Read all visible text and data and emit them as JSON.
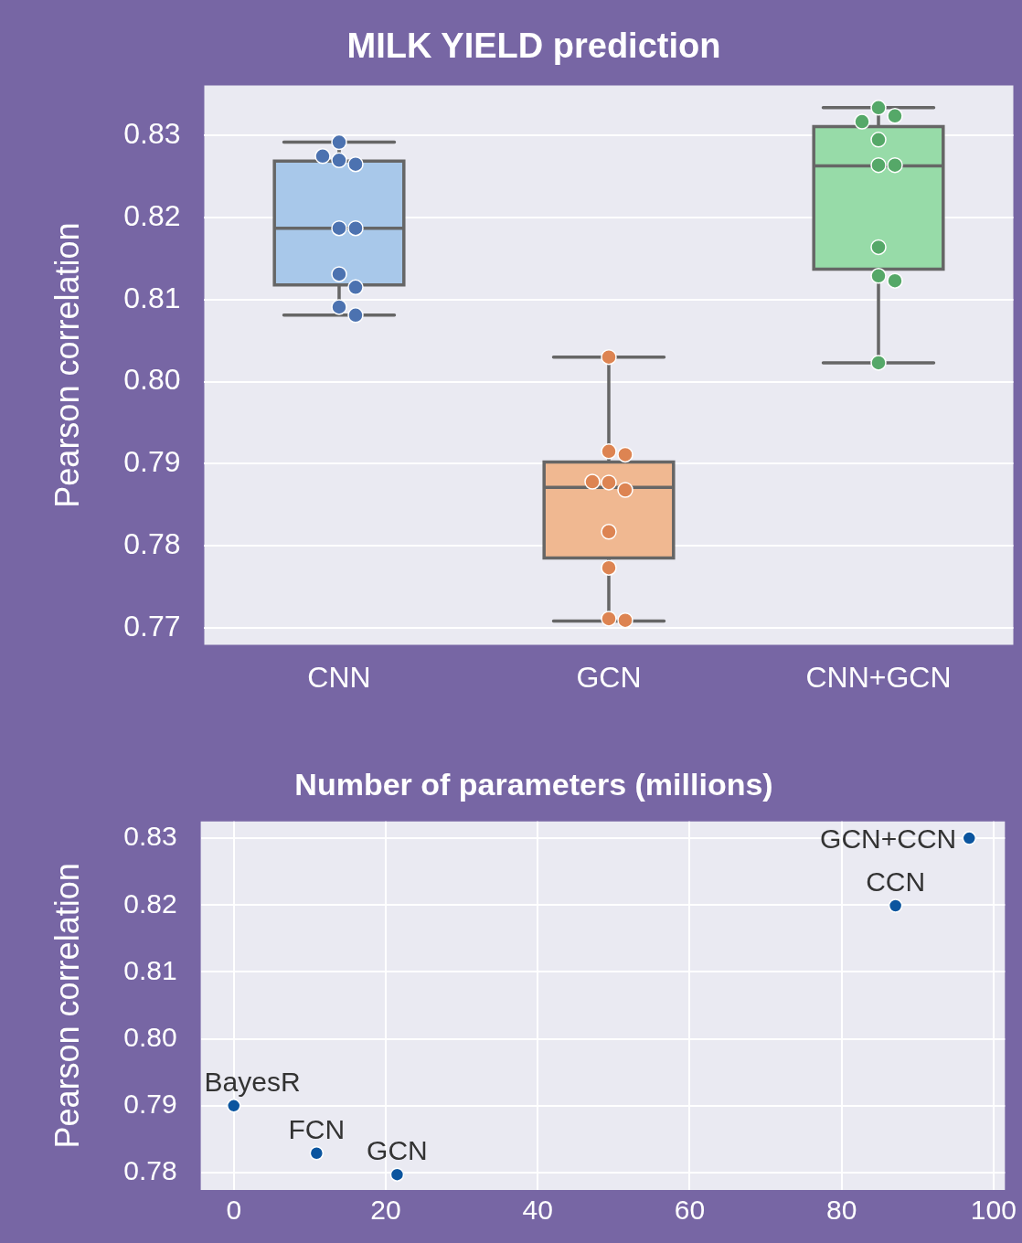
{
  "chart_data": [
    {
      "type": "box",
      "title": "MILK YIELD prediction",
      "ylabel": "Pearson correlation",
      "categories": [
        "CNN",
        "GCN",
        "CNN+GCN"
      ],
      "ylim": [
        0.7679,
        0.8361
      ],
      "yticks": [
        0.77,
        0.78,
        0.79,
        {
          "value": 0.8,
          "label": "0.80"
        },
        0.81,
        0.82,
        0.83
      ],
      "grid": "y",
      "legend": false,
      "series": [
        {
          "type": "box",
          "colors": [
            "#a8c8ea",
            "#f0b891",
            "#97dba8"
          ],
          "boxes": [
            {
              "low": 0.8081,
              "q1": 0.8118,
              "median": 0.8187,
              "q3": 0.8269,
              "high": 0.8292
            },
            {
              "low": 0.7708,
              "q1": 0.7785,
              "median": 0.7871,
              "q3": 0.7902,
              "high": 0.803
            },
            {
              "low": 0.8023,
              "q1": 0.8137,
              "median": 0.8263,
              "q3": 0.8311,
              "high": 0.8334
            }
          ]
        },
        {
          "type": "scatter",
          "x": [
            "CNN",
            "CNN",
            "CNN",
            "CNN",
            "CNN",
            "CNN",
            "CNN",
            "CNN",
            "CNN",
            "CNN",
            "GCN",
            "GCN",
            "GCN",
            "GCN",
            "GCN",
            "GCN",
            "GCN",
            "GCN",
            "GCN",
            "GCN",
            "CNN+GCN",
            "CNN+GCN",
            "CNN+GCN",
            "CNN+GCN",
            "CNN+GCN",
            "CNN+GCN",
            "CNN+GCN",
            "CNN+GCN",
            "CNN+GCN",
            "CNN+GCN"
          ],
          "values": [
            0.8292,
            0.827,
            0.8265,
            0.8275,
            0.8187,
            0.8187,
            0.8131,
            0.8115,
            0.8091,
            0.8081,
            0.803,
            0.7915,
            0.7911,
            0.7877,
            0.7868,
            0.7878,
            0.7817,
            0.7773,
            0.7711,
            0.7709,
            0.8334,
            0.8324,
            0.8317,
            0.8295,
            0.8264,
            0.8264,
            0.8164,
            0.8129,
            0.8123,
            0.8023
          ],
          "colors": [
            "#4c72b0",
            "#4c72b0",
            "#4c72b0",
            "#4c72b0",
            "#4c72b0",
            "#4c72b0",
            "#4c72b0",
            "#4c72b0",
            "#4c72b0",
            "#4c72b0",
            "#dd8452",
            "#dd8452",
            "#dd8452",
            "#dd8452",
            "#dd8452",
            "#dd8452",
            "#dd8452",
            "#dd8452",
            "#dd8452",
            "#dd8452",
            "#55a868",
            "#55a868",
            "#55a868",
            "#55a868",
            "#55a868",
            "#55a868",
            "#55a868",
            "#55a868",
            "#55a868",
            "#55a868"
          ]
        }
      ]
    },
    {
      "type": "scatter",
      "title": "Number of parameters (millions)",
      "ylabel": "Pearson correlation",
      "x": [
        0,
        10.9,
        21.5,
        87.1,
        96.8
      ],
      "values": [
        0.79,
        0.7829,
        0.7797,
        0.8199,
        0.83
      ],
      "color": "#0b559f",
      "xlim": [
        -4.35,
        101.5
      ],
      "xticks": [
        0,
        20,
        40,
        60,
        80,
        100
      ],
      "ylim": [
        0.7774,
        0.8325
      ],
      "yticks": [
        0.78,
        0.79,
        {
          "value": 0.8,
          "label": "0.80"
        },
        0.81,
        0.82,
        0.83
      ],
      "grid": true,
      "legend": false,
      "annotations": [
        {
          "text": "BayesR",
          "x": 0,
          "y": 0.79
        },
        {
          "text": "FCN",
          "x": 10.9,
          "y": 0.7829
        },
        {
          "text": "GCN",
          "x": 21.5,
          "y": 0.7797
        },
        {
          "text": "CCN",
          "x": 87.1,
          "y": 0.8199
        },
        {
          "text": "GCN+CCN",
          "x": 96.8,
          "y": 0.83
        }
      ]
    }
  ]
}
